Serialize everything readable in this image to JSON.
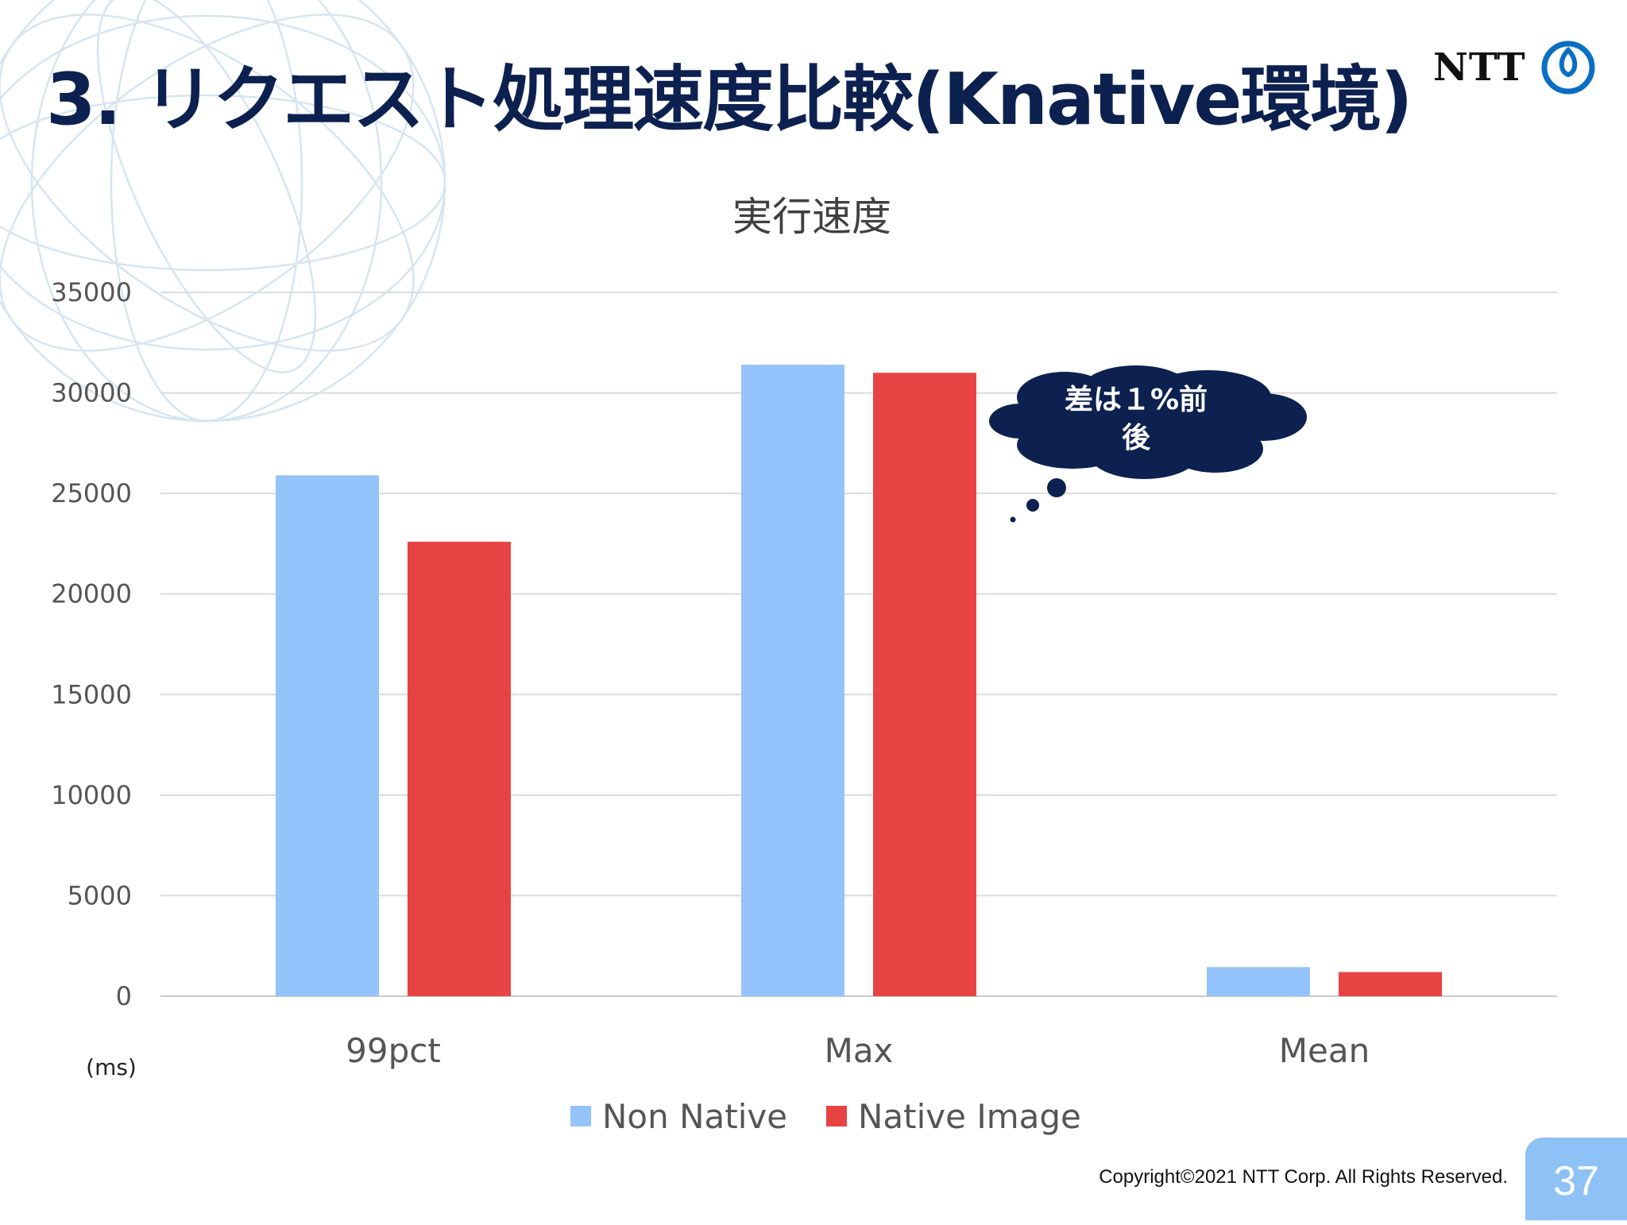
{
  "slide": {
    "title": "3. リクエスト処理速度比較(Knative環境)",
    "logo_text": "NTT",
    "logo_icon": "ntt-mark-icon",
    "copyright": "Copyright©2021  NTT Corp. All Rights Reserved.",
    "page_number": "37",
    "callout": [
      "差は１%前",
      "後"
    ],
    "accent_color": "#0d2150"
  },
  "chart_data": {
    "type": "bar",
    "title": "実行速度",
    "ylabel": "(ms)",
    "xlabel": "",
    "categories": [
      "99pct",
      "Max",
      "Mean"
    ],
    "series": [
      {
        "name": "Non Native",
        "color": "#95c3fb",
        "values": [
          25900,
          31400,
          1450
        ]
      },
      {
        "name": "Native Image",
        "color": "#e84343",
        "values": [
          22600,
          31000,
          1200
        ]
      }
    ],
    "ylim": [
      0,
      35000
    ],
    "yticks": [
      0,
      5000,
      10000,
      15000,
      20000,
      25000,
      30000,
      35000
    ],
    "grid": true,
    "legend_position": "bottom"
  }
}
